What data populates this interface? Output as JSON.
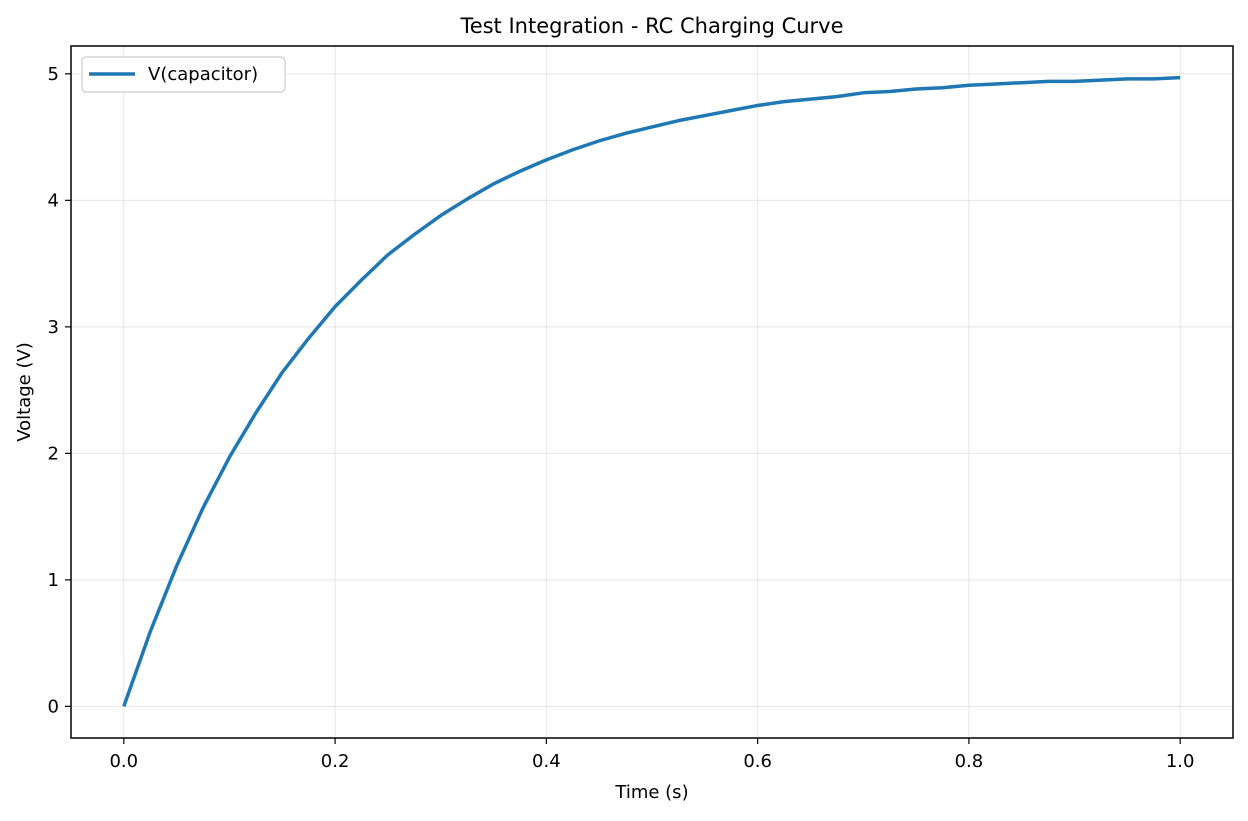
{
  "chart_data": {
    "type": "line",
    "title": "Test Integration - RC Charging Curve",
    "xlabel": "Time (s)",
    "ylabel": "Voltage (V)",
    "xlim": [
      -0.05,
      1.05
    ],
    "ylim": [
      -0.25,
      5.22
    ],
    "x_ticks": [
      0.0,
      0.2,
      0.4,
      0.6,
      0.8,
      1.0
    ],
    "x_tick_labels": [
      "0.0",
      "0.2",
      "0.4",
      "0.6",
      "0.8",
      "1.0"
    ],
    "y_ticks": [
      0,
      1,
      2,
      3,
      4,
      5
    ],
    "y_tick_labels": [
      "0",
      "1",
      "2",
      "3",
      "4",
      "5"
    ],
    "grid": true,
    "legend_position": "top-left",
    "series": [
      {
        "name": "V(capacitor)",
        "color": "#1f77b4",
        "x": [
          0.0,
          0.025,
          0.05,
          0.075,
          0.1,
          0.125,
          0.15,
          0.175,
          0.2,
          0.225,
          0.25,
          0.275,
          0.3,
          0.325,
          0.35,
          0.375,
          0.4,
          0.425,
          0.45,
          0.475,
          0.5,
          0.525,
          0.55,
          0.575,
          0.6,
          0.625,
          0.65,
          0.675,
          0.7,
          0.725,
          0.75,
          0.775,
          0.8,
          0.825,
          0.85,
          0.875,
          0.9,
          0.925,
          0.95,
          0.975,
          1.0
        ],
        "y": [
          0.0,
          0.59,
          1.11,
          1.57,
          1.97,
          2.32,
          2.64,
          2.91,
          3.16,
          3.37,
          3.57,
          3.73,
          3.88,
          4.01,
          4.13,
          4.23,
          4.32,
          4.4,
          4.47,
          4.53,
          4.58,
          4.63,
          4.67,
          4.71,
          4.75,
          4.78,
          4.8,
          4.82,
          4.85,
          4.86,
          4.88,
          4.89,
          4.91,
          4.92,
          4.93,
          4.94,
          4.94,
          4.95,
          4.96,
          4.96,
          4.97
        ]
      }
    ]
  }
}
